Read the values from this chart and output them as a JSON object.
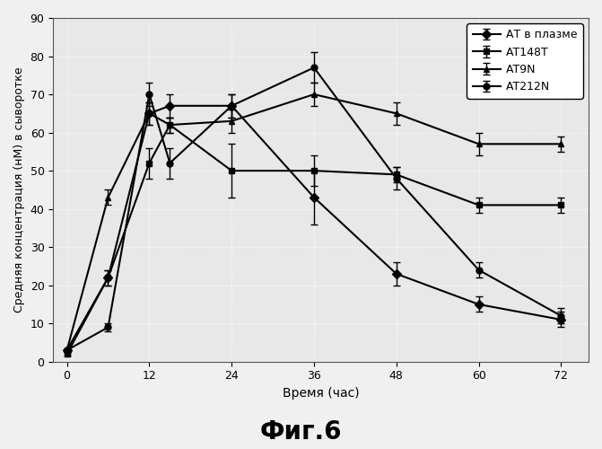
{
  "title": "",
  "xlabel": "Время (час)",
  "ylabel": "Средняя концентрация (нМ) в сыворотке",
  "caption": "Фиг.6",
  "x": [
    0,
    6,
    12,
    15,
    24,
    36,
    48,
    60,
    72
  ],
  "series": {
    "АТ в плазме": {
      "y": [
        3,
        22,
        65,
        67,
        67,
        43,
        23,
        15,
        11
      ],
      "yerr": [
        0.5,
        2,
        3,
        3,
        3,
        7,
        3,
        2,
        2
      ],
      "marker": "D",
      "markersize": 5
    },
    "АТ148Т": {
      "y": [
        2,
        22,
        52,
        62,
        50,
        50,
        49,
        41,
        41
      ],
      "yerr": [
        0.5,
        2,
        4,
        2,
        7,
        4,
        2,
        2,
        2
      ],
      "marker": "s",
      "markersize": 5
    },
    "АТ9N": {
      "y": [
        3,
        43,
        65,
        62,
        63,
        70,
        65,
        57,
        57
      ],
      "yerr": [
        0.5,
        2,
        3,
        2,
        3,
        3,
        3,
        3,
        2
      ],
      "marker": "^",
      "markersize": 5
    },
    "АТ212N": {
      "y": [
        3,
        9,
        70,
        52,
        67,
        77,
        48,
        24,
        12
      ],
      "yerr": [
        0.5,
        1,
        3,
        4,
        3,
        4,
        3,
        2,
        2
      ],
      "marker": "o",
      "markersize": 5
    }
  },
  "legend_labels": [
    "АТ в плазме",
    "АТ148Т",
    "АТ9N",
    "АТ212N"
  ],
  "xticks": [
    0,
    12,
    24,
    36,
    48,
    60,
    72
  ],
  "ylim": [
    0,
    90
  ],
  "yticks": [
    0,
    10,
    20,
    30,
    40,
    50,
    60,
    70,
    80,
    90
  ],
  "plot_bg": "#e8e8e8",
  "fig_bg": "#f0f0f0",
  "line_color": "#000000",
  "grid_color": "#ffffff",
  "linewidth": 1.5,
  "capsize": 3
}
